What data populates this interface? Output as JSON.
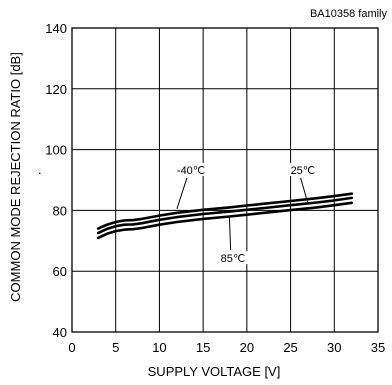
{
  "header_note": "BA10358  family",
  "chart_data": {
    "type": "line",
    "title": "",
    "xlabel": "SUPPLY VOLTAGE [V]",
    "ylabel": "COMMON MODE REJECTION RATIO [dB]",
    "xlim": [
      0,
      35
    ],
    "ylim": [
      40,
      140
    ],
    "xticks": [
      0,
      5,
      10,
      15,
      20,
      25,
      30,
      35
    ],
    "yticks": [
      40,
      60,
      80,
      100,
      120,
      140
    ],
    "grid": true,
    "series": [
      {
        "name": "-40℃",
        "x": [
          3,
          4,
          5,
          6,
          7,
          8,
          10,
          12,
          15,
          18,
          20,
          22,
          25,
          28,
          30,
          32
        ],
        "y": [
          74.0,
          75.3,
          76.2,
          76.7,
          76.8,
          77.2,
          78.3,
          79.2,
          80.2,
          81.0,
          81.6,
          82.2,
          83.1,
          84.0,
          84.7,
          85.5
        ]
      },
      {
        "name": "25℃",
        "x": [
          3,
          4,
          5,
          6,
          7,
          8,
          10,
          12,
          15,
          18,
          20,
          22,
          25,
          28,
          30,
          32
        ],
        "y": [
          72.6,
          73.9,
          74.8,
          75.3,
          75.4,
          75.8,
          76.9,
          77.8,
          78.8,
          79.6,
          80.2,
          80.8,
          81.7,
          82.6,
          83.3,
          84.1
        ]
      },
      {
        "name": "85℃",
        "x": [
          3,
          4,
          5,
          6,
          7,
          8,
          10,
          12,
          15,
          18,
          20,
          22,
          25,
          28,
          30,
          32
        ],
        "y": [
          71.0,
          72.3,
          73.2,
          73.7,
          73.8,
          74.2,
          75.3,
          76.2,
          77.2,
          78.0,
          78.6,
          79.2,
          80.1,
          81.0,
          81.7,
          82.5
        ]
      }
    ],
    "annotations": [
      {
        "text": "-40℃",
        "series": "-40℃",
        "at": [
          12,
          80.5
        ],
        "label_at": [
          12,
          92
        ]
      },
      {
        "text": "25℃",
        "series": "25℃",
        "at": [
          27,
          82.2
        ],
        "label_at": [
          25,
          92
        ]
      },
      {
        "text": "85℃",
        "series": "85℃",
        "at": [
          18,
          78.0
        ],
        "label_at": [
          17,
          63
        ]
      }
    ],
    "stray_label": "."
  }
}
